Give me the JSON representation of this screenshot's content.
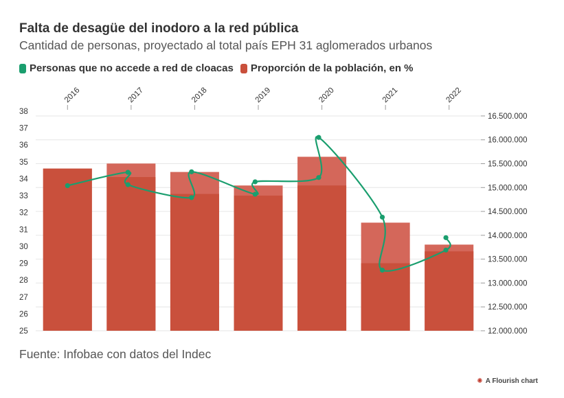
{
  "header": {
    "title": "Falta de desagüe del inodoro a la red pública",
    "subtitle": "Cantidad de personas, proyectado al total país EPH 31 aglomerados urbanos"
  },
  "legend": [
    {
      "label": "Personas que no accede a red de cloacas",
      "color": "#1a9e6e"
    },
    {
      "label": "Proporción de la población, en %",
      "color": "#c9503c"
    }
  ],
  "source": "Fuente: Infobae con datos del Indec",
  "credit": "A Flourish chart",
  "chart_data": {
    "type": "bar",
    "categories": [
      "2016",
      "2017",
      "2018",
      "2019",
      "2020",
      "2021",
      "2022"
    ],
    "left_axis": {
      "ylim": [
        25,
        38
      ],
      "ticks": [
        "25",
        "26",
        "27",
        "28",
        "29",
        "30",
        "31",
        "32",
        "33",
        "34",
        "35",
        "36",
        "37",
        "38"
      ]
    },
    "right_axis": {
      "ylim": [
        12000000,
        16600000
      ],
      "ticks": [
        {
          "value": 12000000,
          "label": "12.000.000"
        },
        {
          "value": 12500000,
          "label": "12.500.000"
        },
        {
          "value": 13000000,
          "label": "13.000.000"
        },
        {
          "value": 13500000,
          "label": "13.500.000"
        },
        {
          "value": 14000000,
          "label": "14.000.000"
        },
        {
          "value": 14500000,
          "label": "14.500.000"
        },
        {
          "value": 15000000,
          "label": "15.000.000"
        },
        {
          "value": 15500000,
          "label": "15.500.000"
        },
        {
          "value": 16000000,
          "label": "16.000.000"
        },
        {
          "value": 16500000,
          "label": "16.500.000"
        }
      ]
    },
    "bars": {
      "name": "Proporción de la población, en %",
      "color": "#c9503c",
      "light_color": "#d4675a",
      "semesters": [
        [
          34.6,
          34.6
        ],
        [
          34.1,
          34.9
        ],
        [
          33.1,
          34.4
        ],
        [
          33.0,
          33.6
        ],
        [
          33.6,
          35.3
        ],
        [
          29.0,
          31.4
        ],
        [
          29.7,
          30.1
        ]
      ]
    },
    "line": {
      "name": "Personas que no accede a red de cloacas",
      "color": "#1a9e6e",
      "points": [
        {
          "x": 0.0,
          "y": 15040000
        },
        {
          "x": 0.95,
          "y": 15320000
        },
        {
          "x": 0.95,
          "y": 15060000
        },
        {
          "x": 1.95,
          "y": 14790000
        },
        {
          "x": 1.95,
          "y": 15330000
        },
        {
          "x": 2.95,
          "y": 14860000
        },
        {
          "x": 2.95,
          "y": 15120000
        },
        {
          "x": 3.95,
          "y": 15210000
        },
        {
          "x": 3.95,
          "y": 16050000
        },
        {
          "x": 4.95,
          "y": 14380000
        },
        {
          "x": 4.95,
          "y": 13270000
        },
        {
          "x": 5.95,
          "y": 13690000
        },
        {
          "x": 5.95,
          "y": 13950000
        }
      ]
    }
  }
}
